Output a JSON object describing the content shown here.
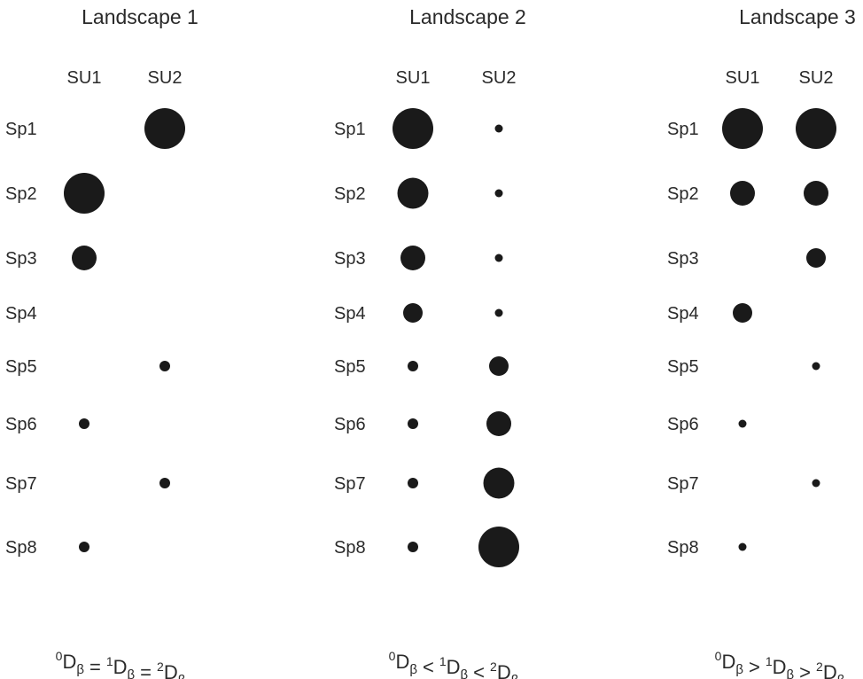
{
  "panels": [
    {
      "title": "Landscape 1",
      "columns": [
        "SU1",
        "SU2"
      ],
      "species": [
        "Sp1",
        "Sp2",
        "Sp3",
        "Sp4",
        "Sp5",
        "Sp6",
        "Sp7",
        "Sp8"
      ],
      "abundance": [
        [
          0,
          5
        ],
        [
          5,
          0
        ],
        [
          3,
          0
        ],
        [
          0,
          0
        ],
        [
          0,
          1
        ],
        [
          1,
          0
        ],
        [
          0,
          1
        ],
        [
          1,
          0
        ]
      ],
      "formula": {
        "parts": [
          {
            "sup": "0",
            "base": "D",
            "sub": "β"
          },
          {
            "op": "="
          },
          {
            "sup": "1",
            "base": "D",
            "sub": "β"
          },
          {
            "op": "="
          },
          {
            "sup": "2",
            "base": "D",
            "sub": "β"
          }
        ]
      }
    },
    {
      "title": "Landscape 2",
      "columns": [
        "SU1",
        "SU2"
      ],
      "species": [
        "Sp1",
        "Sp2",
        "Sp3",
        "Sp4",
        "Sp5",
        "Sp6",
        "Sp7",
        "Sp8"
      ],
      "abundance": [
        [
          5,
          0.5
        ],
        [
          4,
          0.5
        ],
        [
          3,
          0.5
        ],
        [
          2,
          0.5
        ],
        [
          1,
          2
        ],
        [
          1,
          3
        ],
        [
          1,
          4
        ],
        [
          1,
          5
        ]
      ],
      "formula": {
        "parts": [
          {
            "sup": "0",
            "base": "D",
            "sub": "β"
          },
          {
            "op": "<"
          },
          {
            "sup": "1",
            "base": "D",
            "sub": "β"
          },
          {
            "op": "<"
          },
          {
            "sup": "2",
            "base": "D",
            "sub": "β"
          }
        ]
      }
    },
    {
      "title": "Landscape 3",
      "columns": [
        "SU1",
        "SU2"
      ],
      "species": [
        "Sp1",
        "Sp2",
        "Sp3",
        "Sp4",
        "Sp5",
        "Sp6",
        "Sp7",
        "Sp8"
      ],
      "abundance": [
        [
          5,
          5
        ],
        [
          3,
          3
        ],
        [
          0,
          2
        ],
        [
          2,
          0
        ],
        [
          0,
          0.5
        ],
        [
          0.5,
          0
        ],
        [
          0,
          0.5
        ],
        [
          0.5,
          0
        ]
      ],
      "formula": {
        "parts": [
          {
            "sup": "0",
            "base": "D",
            "sub": "β"
          },
          {
            "op": ">"
          },
          {
            "sup": "1",
            "base": "D",
            "sub": "β"
          },
          {
            "op": ">"
          },
          {
            "sup": "2",
            "base": "D",
            "sub": "β"
          }
        ]
      }
    }
  ],
  "colors": {
    "dot": "#1a1a1a",
    "text": "#2a2a2a",
    "background": "#ffffff"
  }
}
